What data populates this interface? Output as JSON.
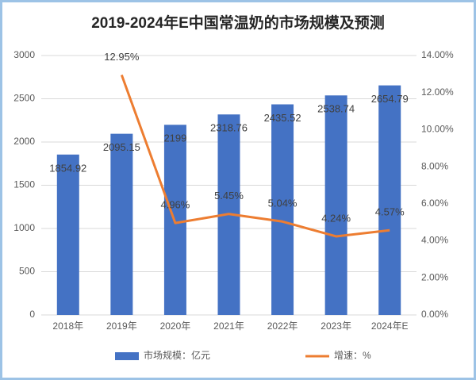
{
  "chart_data": {
    "type": "bar",
    "title": "2019-2024年E中国常温奶的市场规模及预测",
    "categories": [
      "2018年",
      "2019年",
      "2020年",
      "2021年",
      "2022年",
      "2023年",
      "2024年E"
    ],
    "series": [
      {
        "name": "市场规模：亿元",
        "type": "bar",
        "color": "#4472c4",
        "values": [
          1854.92,
          2095.15,
          2199,
          2318.76,
          2435.52,
          2538.74,
          2654.79
        ]
      },
      {
        "name": "增速：%",
        "type": "line",
        "axis": "y2",
        "color": "#ed7d31",
        "values": [
          null,
          12.95,
          4.96,
          5.45,
          5.04,
          4.24,
          4.57
        ],
        "value_labels": [
          null,
          "12.95%",
          "4.96%",
          "5.45%",
          "5.04%",
          "4.24%",
          "4.57%"
        ]
      }
    ],
    "ylim": [
      0,
      3000
    ],
    "yticks": [
      0,
      500,
      1000,
      1500,
      2000,
      2500,
      3000
    ],
    "y2lim": [
      0,
      14
    ],
    "y2ticks": [
      {
        "value": 0,
        "label": "0.00%"
      },
      {
        "value": 2,
        "label": "2.00%"
      },
      {
        "value": 4,
        "label": "4.00%"
      },
      {
        "value": 6,
        "label": "6.00%"
      },
      {
        "value": 8,
        "label": "8.00%"
      },
      {
        "value": 10,
        "label": "10.00%"
      },
      {
        "value": 12,
        "label": "12.00%"
      },
      {
        "value": 14,
        "label": "14.00%"
      }
    ],
    "grid": true,
    "legend": "bottom"
  }
}
